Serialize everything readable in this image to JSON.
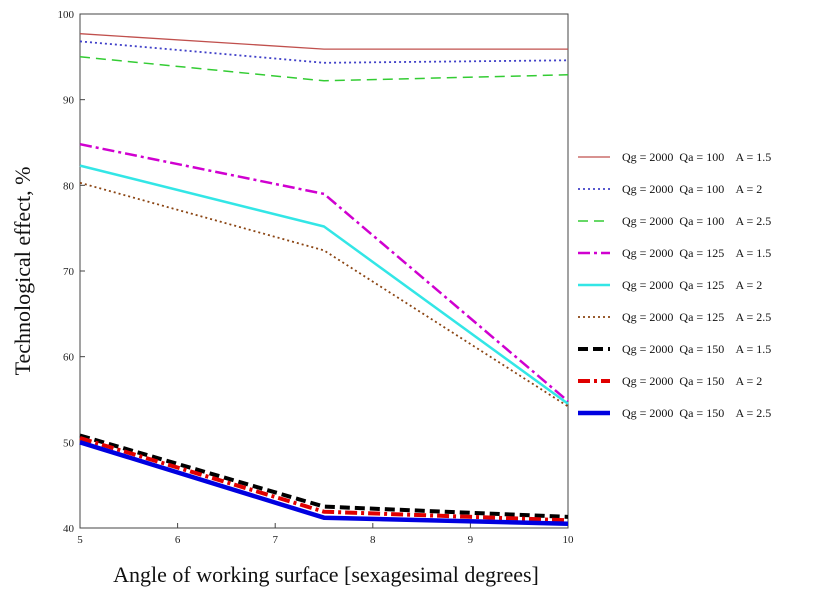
{
  "chart_data": {
    "type": "line",
    "xlabel": "Angle of working surface [sexagesimal degrees]",
    "ylabel": "Technological effect, %",
    "xlim": [
      5,
      10
    ],
    "ylim": [
      40,
      100
    ],
    "x_ticks": [
      "5",
      "6",
      "7",
      "8",
      "9",
      "10"
    ],
    "y_ticks": [
      "40",
      "50",
      "60",
      "70",
      "80",
      "90",
      "100"
    ],
    "x": [
      5,
      7.5,
      10
    ],
    "grid": false,
    "legend_position": "right",
    "series": [
      {
        "name": "Qg = 2000  Qa = 100    A = 1.5",
        "values": [
          97.7,
          95.9,
          95.9
        ],
        "color": "#c0504d",
        "style": "solid-thin"
      },
      {
        "name": "Qg = 2000  Qa = 100    A = 2",
        "values": [
          96.8,
          94.3,
          94.6
        ],
        "color": "#4040c8",
        "style": "dotted"
      },
      {
        "name": "Qg = 2000  Qa = 100    A = 2.5",
        "values": [
          95.0,
          92.2,
          92.9
        ],
        "color": "#33cc33",
        "style": "dashed"
      },
      {
        "name": "Qg = 2000  Qa = 125    A = 1.5",
        "values": [
          84.8,
          79.0,
          54.8
        ],
        "color": "#d000d0",
        "style": "dashdot"
      },
      {
        "name": "Qg = 2000  Qa = 125    A = 2",
        "values": [
          82.3,
          75.2,
          54.5
        ],
        "color": "#33e6e6",
        "style": "solid"
      },
      {
        "name": "Qg = 2000  Qa = 125    A = 2.5",
        "values": [
          80.3,
          72.4,
          54.2
        ],
        "color": "#8b4513",
        "style": "dotted"
      },
      {
        "name": "Qg = 2000  Qa = 150    A = 1.5",
        "values": [
          50.8,
          42.5,
          41.3
        ],
        "color": "#000000",
        "style": "thick-dashed"
      },
      {
        "name": "Qg = 2000  Qa = 150    A = 2",
        "values": [
          50.5,
          41.9,
          40.9
        ],
        "color": "#e00000",
        "style": "thick-dashdot"
      },
      {
        "name": "Qg = 2000  Qa = 150    A = 2.5",
        "values": [
          50.0,
          41.2,
          40.5
        ],
        "color": "#0000e0",
        "style": "thick-solid"
      }
    ]
  }
}
